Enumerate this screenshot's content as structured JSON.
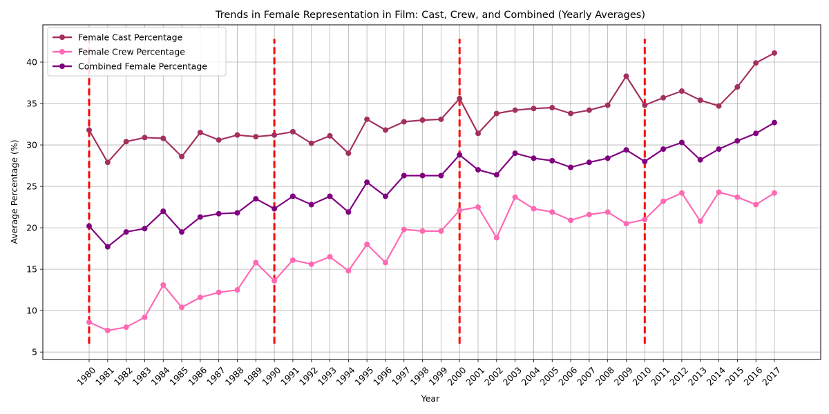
{
  "chart_data": {
    "type": "line",
    "title": "Trends in Female Representation in Film: Cast, Crew, and Combined (Yearly Averages)",
    "xlabel": "Year",
    "ylabel": "Average Percentage (%)",
    "x": [
      1980,
      1981,
      1982,
      1983,
      1984,
      1985,
      1986,
      1987,
      1988,
      1989,
      1990,
      1991,
      1992,
      1993,
      1994,
      1995,
      1996,
      1997,
      1998,
      1999,
      2000,
      2001,
      2002,
      2003,
      2004,
      2005,
      2006,
      2007,
      2008,
      2009,
      2010,
      2011,
      2012,
      2013,
      2014,
      2015,
      2016,
      2017
    ],
    "xlim": [
      1977.5,
      2019.5
    ],
    "ylim": [
      4.1,
      44.5
    ],
    "yticks": [
      5,
      10,
      15,
      20,
      25,
      30,
      35,
      40
    ],
    "grid": true,
    "legend_position": "upper-left",
    "series": [
      {
        "name": "Female Cast Percentage",
        "color": "#a3305f",
        "values": [
          31.8,
          27.9,
          30.4,
          30.9,
          30.8,
          28.6,
          31.5,
          30.6,
          31.2,
          31.0,
          31.2,
          31.6,
          30.2,
          31.1,
          29.0,
          33.1,
          31.8,
          32.8,
          33.0,
          33.1,
          35.6,
          31.4,
          33.8,
          34.2,
          34.4,
          34.5,
          33.8,
          34.2,
          34.8,
          38.3,
          34.8,
          35.7,
          36.5,
          35.4,
          34.7,
          37.0,
          39.9,
          41.1
        ]
      },
      {
        "name": "Female Crew Percentage",
        "color": "#ff69b4",
        "values": [
          8.6,
          7.6,
          8.0,
          9.2,
          13.1,
          10.4,
          11.6,
          12.2,
          12.5,
          15.8,
          13.6,
          16.1,
          15.6,
          16.5,
          14.8,
          18.0,
          15.8,
          19.8,
          19.6,
          19.6,
          22.1,
          22.5,
          18.8,
          23.7,
          22.3,
          21.9,
          20.9,
          21.6,
          21.9,
          20.5,
          21.0,
          23.2,
          24.2,
          20.8,
          24.3,
          23.7,
          22.8,
          24.2
        ]
      },
      {
        "name": "Combined Female Percentage",
        "color": "#800080",
        "values": [
          20.2,
          17.7,
          19.5,
          19.9,
          22.0,
          19.5,
          21.3,
          21.7,
          21.8,
          23.5,
          22.3,
          23.8,
          22.8,
          23.8,
          21.9,
          25.5,
          23.8,
          26.3,
          26.3,
          26.3,
          28.8,
          27.0,
          26.4,
          29.0,
          28.4,
          28.1,
          27.3,
          27.9,
          28.4,
          29.4,
          28.0,
          29.5,
          30.3,
          28.2,
          29.5,
          30.5,
          31.4,
          32.7
        ]
      }
    ],
    "vertical_lines": {
      "color": "#ff0000",
      "x": [
        1980,
        1990,
        2000,
        2010
      ],
      "ymin": 6.0,
      "ymax": 42.8
    }
  }
}
